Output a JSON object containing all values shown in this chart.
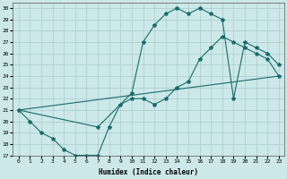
{
  "xlabel": "Humidex (Indice chaleur)",
  "xlim": [
    -0.5,
    23.5
  ],
  "ylim": [
    17,
    30.5
  ],
  "yticks": [
    17,
    18,
    19,
    20,
    21,
    22,
    23,
    24,
    25,
    26,
    27,
    28,
    29,
    30
  ],
  "xticks": [
    0,
    1,
    2,
    3,
    4,
    5,
    6,
    7,
    8,
    9,
    10,
    11,
    12,
    13,
    14,
    15,
    16,
    17,
    18,
    19,
    20,
    21,
    22,
    23
  ],
  "bg_color": "#cce8e8",
  "line_color": "#1a6b6b",
  "grid_color": "#aacccc",
  "line1_x": [
    0,
    1,
    2,
    3,
    4,
    5,
    6,
    7,
    8,
    9,
    10,
    11,
    12,
    13,
    14,
    15,
    16,
    17,
    18,
    19,
    20,
    21,
    22,
    23
  ],
  "line1_y": [
    21.0,
    20.0,
    19.0,
    18.5,
    17.5,
    17.0,
    17.0,
    17.0,
    19.5,
    21.5,
    22.0,
    22.0,
    21.5,
    22.0,
    23.0,
    23.5,
    25.5,
    26.5,
    27.5,
    27.0,
    26.5,
    26.0,
    25.5,
    24.0
  ],
  "line2_x": [
    0,
    7,
    10,
    11,
    12,
    13,
    14,
    15,
    16,
    17,
    18,
    19,
    20,
    21,
    22,
    23
  ],
  "line2_y": [
    21.0,
    19.5,
    22.5,
    27.0,
    28.5,
    29.5,
    30.0,
    29.5,
    30.0,
    29.5,
    29.0,
    22.0,
    27.0,
    26.5,
    26.0,
    25.0
  ],
  "line3_x": [
    0,
    23
  ],
  "line3_y": [
    21.0,
    24.0
  ]
}
